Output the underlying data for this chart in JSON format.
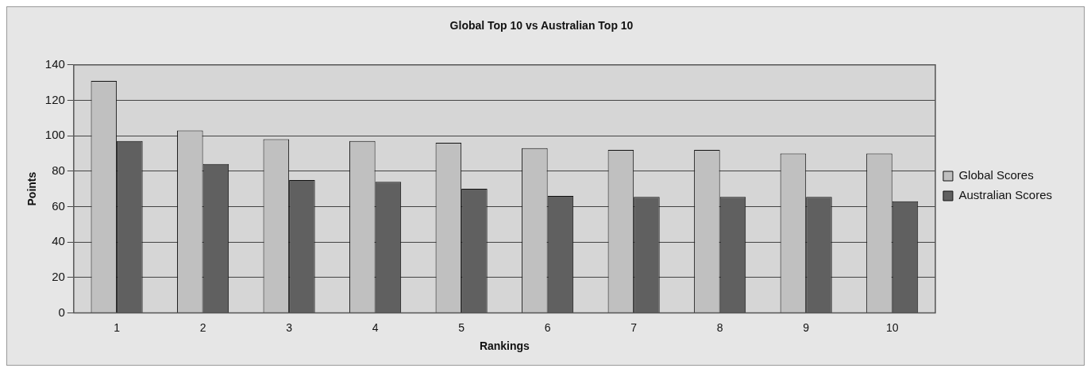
{
  "chart_data": {
    "type": "bar",
    "title": "Global Top 10 vs Australian Top 10",
    "xlabel": "Rankings",
    "ylabel": "Points",
    "categories": [
      "1",
      "2",
      "3",
      "4",
      "5",
      "6",
      "7",
      "8",
      "9",
      "10"
    ],
    "series": [
      {
        "name": "Global Scores",
        "color": "#c0c0c0",
        "values": [
          131,
          103,
          98,
          97,
          96,
          93,
          92,
          92,
          90,
          90
        ]
      },
      {
        "name": "Australian Scores",
        "color": "#606060",
        "values": [
          97,
          84,
          75,
          74,
          70,
          66,
          65.5,
          65.5,
          65.5,
          63
        ]
      }
    ],
    "ylim": [
      0,
      140
    ],
    "yticks": [
      0,
      20,
      40,
      60,
      80,
      100,
      120,
      140
    ],
    "grid": "y",
    "legend": "right"
  }
}
